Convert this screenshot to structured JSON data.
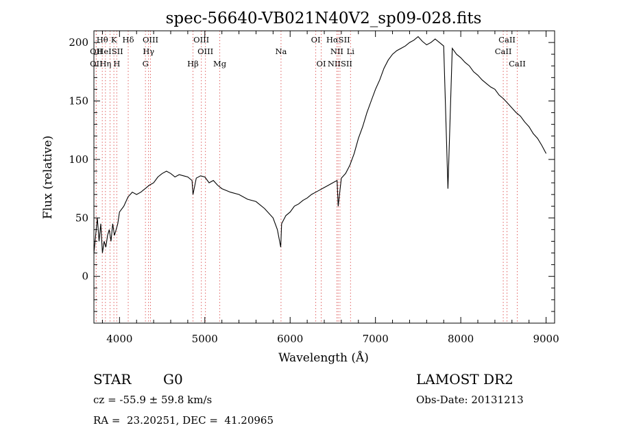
{
  "chart_data": {
    "type": "line",
    "title": "spec-56640-VB021N40V2_sp09-028.fits",
    "xlabel": "Wavelength (Å)",
    "ylabel": "Flux (relative)",
    "xlim": [
      3700,
      9100
    ],
    "ylim": [
      -40,
      210
    ],
    "xticks": [
      4000,
      5000,
      6000,
      7000,
      8000,
      9000
    ],
    "yticks": [
      0,
      50,
      100,
      150,
      200
    ],
    "grid": false,
    "series": [
      {
        "x": [
          3700,
          3720,
          3740,
          3760,
          3780,
          3800,
          3820,
          3840,
          3860,
          3880,
          3900,
          3920,
          3940,
          3960,
          3980,
          4000,
          4050,
          4100,
          4150,
          4200,
          4250,
          4300,
          4350,
          4400,
          4450,
          4500,
          4550,
          4600,
          4650,
          4700,
          4750,
          4800,
          4850,
          4861,
          4900,
          4950,
          5000,
          5050,
          5100,
          5150,
          5200,
          5300,
          5400,
          5500,
          5600,
          5700,
          5800,
          5850,
          5890,
          5900,
          5950,
          6000,
          6050,
          6100,
          6150,
          6200,
          6250,
          6300,
          6350,
          6400,
          6450,
          6500,
          6550,
          6563,
          6600,
          6650,
          6700,
          6750,
          6800,
          6850,
          6900,
          6950,
          7000,
          7050,
          7100,
          7150,
          7200,
          7250,
          7300,
          7350,
          7400,
          7450,
          7500,
          7550,
          7600,
          7650,
          7700,
          7750,
          7800,
          7850,
          7900,
          7950,
          8000,
          8050,
          8100,
          8150,
          8200,
          8250,
          8300,
          8350,
          8400,
          8450,
          8500,
          8550,
          8600,
          8650,
          8700,
          8750,
          8800,
          8850,
          8900,
          8950,
          9000
        ],
        "y": [
          20,
          35,
          50,
          30,
          45,
          20,
          30,
          25,
          35,
          40,
          30,
          45,
          35,
          40,
          45,
          55,
          60,
          68,
          72,
          70,
          72,
          75,
          78,
          80,
          85,
          88,
          90,
          88,
          85,
          87,
          86,
          85,
          82,
          70,
          84,
          86,
          85,
          80,
          82,
          78,
          75,
          72,
          70,
          66,
          64,
          58,
          50,
          40,
          25,
          45,
          52,
          55,
          60,
          62,
          65,
          67,
          70,
          72,
          74,
          76,
          78,
          80,
          82,
          60,
          84,
          88,
          95,
          105,
          118,
          128,
          140,
          150,
          160,
          168,
          178,
          185,
          190,
          193,
          195,
          197,
          200,
          202,
          205,
          201,
          198,
          200,
          203,
          200,
          197,
          75,
          195,
          190,
          187,
          183,
          180,
          175,
          172,
          168,
          165,
          162,
          160,
          155,
          152,
          148,
          144,
          140,
          137,
          132,
          128,
          122,
          118,
          112,
          105
        ]
      }
    ],
    "emission_lines": [
      {
        "label": "Hθ",
        "x": 3798,
        "row": 1
      },
      {
        "label": "K",
        "x": 3934,
        "row": 1
      },
      {
        "label": "Hδ",
        "x": 4102,
        "row": 1
      },
      {
        "label": "OIII",
        "x": 4363,
        "row": 1
      },
      {
        "label": "OIII",
        "x": 4959,
        "row": 1
      },
      {
        "label": "OI",
        "x": 6300,
        "row": 1
      },
      {
        "label": "HαSII",
        "x": 6563,
        "row": 1
      },
      {
        "label": "CaII",
        "x": 8542,
        "row": 1
      },
      {
        "label": "OII",
        "x": 3727,
        "row": 2
      },
      {
        "label": "HeISII",
        "x": 3889,
        "row": 2
      },
      {
        "label": "Hγ",
        "x": 4340,
        "row": 2
      },
      {
        "label": "OIII",
        "x": 5007,
        "row": 2
      },
      {
        "label": "Na",
        "x": 5893,
        "row": 2
      },
      {
        "label": "NII",
        "x": 6548,
        "row": 2
      },
      {
        "label": "Li",
        "x": 6708,
        "row": 2
      },
      {
        "label": "CaII",
        "x": 8498,
        "row": 2
      },
      {
        "label": "OII",
        "x": 3727,
        "row": 3
      },
      {
        "label": "Hη",
        "x": 3835,
        "row": 3
      },
      {
        "label": "H",
        "x": 3968,
        "row": 3
      },
      {
        "label": "G",
        "x": 4304,
        "row": 3
      },
      {
        "label": "Hβ",
        "x": 4861,
        "row": 3
      },
      {
        "label": "Mg",
        "x": 5175,
        "row": 3
      },
      {
        "label": "OI",
        "x": 6364,
        "row": 3
      },
      {
        "label": "NIISII",
        "x": 6584,
        "row": 3
      },
      {
        "label": "CaII",
        "x": 8662,
        "row": 3
      }
    ]
  },
  "info": {
    "class": "STAR",
    "subclass": "G0",
    "survey": "LAMOST DR2",
    "redshift": "cz = -55.9 ± 59.8 km/s",
    "obs_date": "Obs-Date: 20131213",
    "coords": "RA =  23.20251, DEC =  41.20965"
  },
  "colors": {
    "line_marker": "#e06060",
    "spectrum": "#000000"
  }
}
